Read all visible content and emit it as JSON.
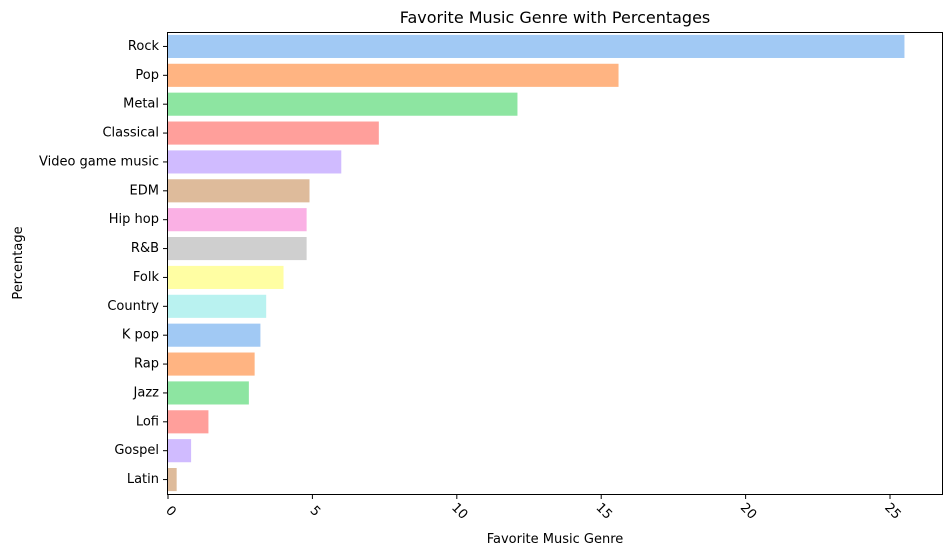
{
  "chart_data": {
    "type": "bar",
    "orientation": "horizontal",
    "title": "Favorite Music Genre with Percentages",
    "xlabel": "Favorite Music Genre",
    "ylabel": "Percentage",
    "xlim": [
      0,
      26.8
    ],
    "xticks": [
      "0",
      "5",
      "10",
      "15",
      "20",
      "25"
    ],
    "xtick_rotation": 45,
    "grid": false,
    "legend": "none",
    "categories": [
      "Rock",
      "Pop",
      "Metal",
      "Classical",
      "Video game music",
      "EDM",
      "Hip hop",
      "R&B",
      "Folk",
      "Country",
      "K pop",
      "Rap",
      "Jazz",
      "Lofi",
      "Gospel",
      "Latin"
    ],
    "values": [
      25.5,
      15.6,
      12.1,
      7.3,
      6.0,
      4.9,
      4.8,
      4.8,
      4.0,
      3.4,
      3.2,
      3.0,
      2.8,
      1.4,
      0.8,
      0.3
    ],
    "colors": [
      "#a1c9f4",
      "#ffb482",
      "#8de5a1",
      "#ff9f9b",
      "#d0bbff",
      "#debb9b",
      "#fab0e4",
      "#cfcfcf",
      "#fffea3",
      "#b9f2f0",
      "#a1c9f4",
      "#ffb482",
      "#8de5a1",
      "#ff9f9b",
      "#d0bbff",
      "#debb9b"
    ]
  }
}
